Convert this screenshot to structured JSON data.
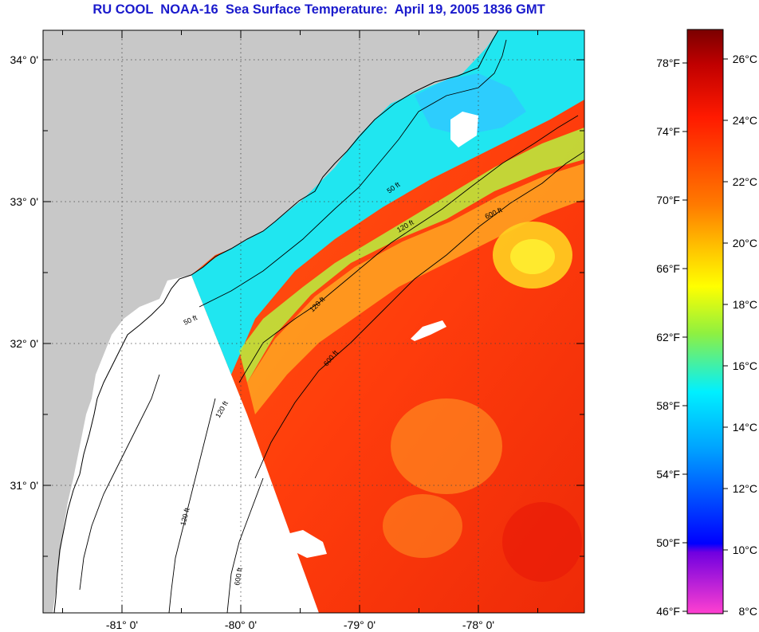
{
  "title": "RU COOL  NOAA-16  Sea Surface Temperature:  April 19, 2005 1836 GMT",
  "map": {
    "lon_ticks": [
      {
        "value": -81,
        "label": "-81° 0'"
      },
      {
        "value": -80,
        "label": "-80° 0'"
      },
      {
        "value": -79,
        "label": "-79° 0'"
      },
      {
        "value": -78,
        "label": "-78° 0'"
      }
    ],
    "lat_ticks": [
      {
        "value": 34,
        "label": "34° 0'"
      },
      {
        "value": 33,
        "label": "33° 0'"
      },
      {
        "value": 32,
        "label": "32° 0'"
      },
      {
        "value": 31,
        "label": "31° 0'"
      }
    ],
    "contour_labels": [
      "50 ft",
      "120 ft",
      "600 ft"
    ],
    "colors": {
      "land": "#c8c8c8",
      "no_data": "#ffffff",
      "gridline": "#444444"
    }
  },
  "colorbar": {
    "fahrenheit_labels": [
      "78°F",
      "74°F",
      "70°F",
      "66°F",
      "62°F",
      "58°F",
      "54°F",
      "50°F",
      "46°F"
    ],
    "celsius_labels": [
      "26°C",
      "24°C",
      "22°C",
      "20°C",
      "18°C",
      "16°C",
      "14°C",
      "12°C",
      "10°C",
      "8°C"
    ]
  }
}
